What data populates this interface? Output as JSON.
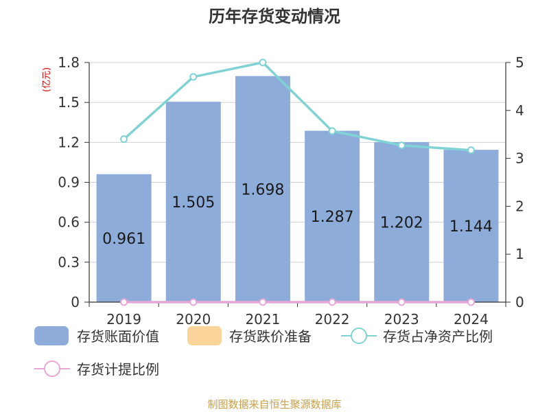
{
  "chart_data": {
    "type": "bar",
    "title": "历年存货变动情况",
    "categories": [
      "2019",
      "2020",
      "2021",
      "2022",
      "2023",
      "2024"
    ],
    "y_left": {
      "unit_label": "(亿元)",
      "ylim": [
        0,
        1.8
      ],
      "ticks": [
        "0",
        "0.3",
        "0.6",
        "0.9",
        "1.2",
        "1.5",
        "1.8"
      ]
    },
    "y_right": {
      "ylim": [
        0,
        5
      ],
      "ticks": [
        "0",
        "1",
        "2",
        "3",
        "4",
        "5"
      ]
    },
    "grid": true,
    "legend_position": "bottom",
    "series": [
      {
        "name": "存货账面价值",
        "type": "bar",
        "axis": "left",
        "color": "#8eacd9",
        "values": [
          0.961,
          1.505,
          1.698,
          1.287,
          1.202,
          1.144
        ],
        "data_labels": [
          "0.961",
          "1.505",
          "1.698",
          "1.287",
          "1.202",
          "1.144"
        ]
      },
      {
        "name": "存货跌价准备",
        "type": "bar",
        "axis": "left",
        "color": "#fbd49a",
        "values": [
          0,
          0,
          0,
          0,
          0,
          0
        ]
      },
      {
        "name": "存货占净资产比例",
        "type": "line",
        "axis": "right",
        "color": "#7fd3d4",
        "values": [
          3.4,
          4.7,
          5.0,
          3.57,
          3.27,
          3.17
        ]
      },
      {
        "name": "存货计提比例",
        "type": "line",
        "axis": "right",
        "color": "#e8a6d6",
        "values": [
          0,
          0,
          0,
          0,
          0,
          0
        ]
      }
    ]
  },
  "footer": {
    "source": "制图数据来自恒生聚源数据库",
    "source_color": "#c8a04a"
  }
}
